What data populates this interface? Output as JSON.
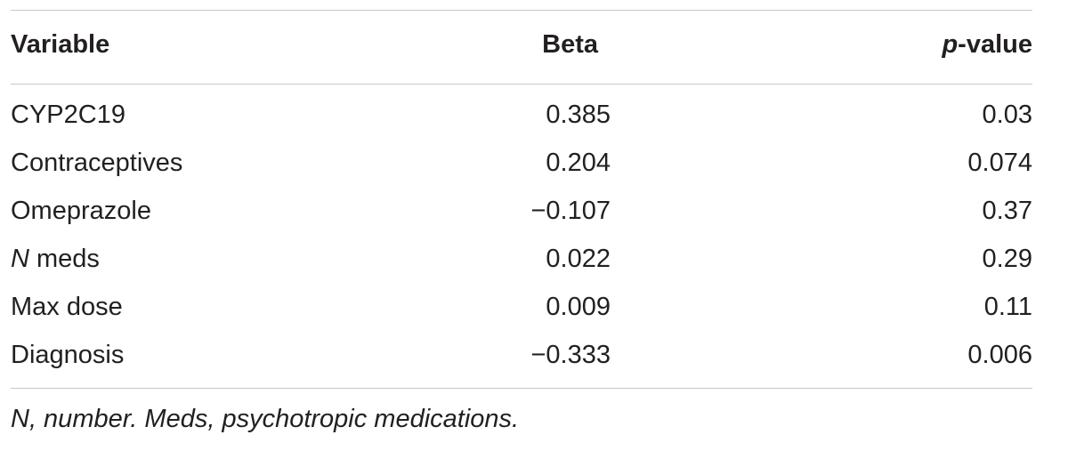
{
  "table": {
    "headers": {
      "variable": "Variable",
      "beta": "Beta",
      "p_prefix": "p",
      "p_suffix": "-value"
    },
    "rows": [
      {
        "variable_italic": "",
        "variable": "CYP2C19",
        "beta": "0.385",
        "p": "0.03"
      },
      {
        "variable_italic": "",
        "variable": "Contraceptives",
        "beta": "0.204",
        "p": "0.074"
      },
      {
        "variable_italic": "",
        "variable": "Omeprazole",
        "beta": "−0.107",
        "p": "0.37"
      },
      {
        "variable_italic": "N",
        "variable": " meds",
        "beta": "0.022",
        "p": "0.29"
      },
      {
        "variable_italic": "",
        "variable": "Max dose",
        "beta": "0.009",
        "p": "0.11"
      },
      {
        "variable_italic": "",
        "variable": "Diagnosis",
        "beta": "−0.333",
        "p": "0.006"
      }
    ]
  },
  "footnote": "N, number. Meds, psychotropic medications."
}
